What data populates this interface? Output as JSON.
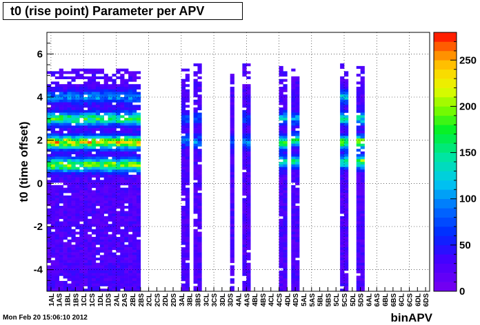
{
  "chart_data": {
    "type": "heatmap",
    "title": "t0 (rise point) Parameter per APV",
    "xlabel": "binAPV",
    "ylabel": "t0 (time offset)",
    "ylim": [
      -5,
      7
    ],
    "yticks": [
      -4,
      -2,
      0,
      2,
      4,
      6
    ],
    "categories": [
      "1AL",
      "1AS",
      "1BL",
      "1BS",
      "1CL",
      "1CS",
      "1DL",
      "1DS",
      "2AL",
      "2AS",
      "2BL",
      "2BS",
      "2CL",
      "2CS",
      "2DL",
      "2DS",
      "3AL",
      "3BL",
      "3BS",
      "3CL",
      "3CS",
      "3DL",
      "3DS",
      "4AL",
      "4AS",
      "4BL",
      "4BS",
      "4CL",
      "4CS",
      "4DL",
      "4DS",
      "5AL",
      "5AS",
      "5BL",
      "5BS",
      "5CL",
      "5CS",
      "5DL",
      "5DS",
      "6AL",
      "6AS",
      "6BL",
      "6BS",
      "6CL",
      "6CS",
      "6DL",
      "6DS"
    ],
    "zlim": [
      0,
      280
    ],
    "zticks": [
      0,
      50,
      100,
      150,
      200,
      250
    ],
    "occupied_columns": [
      {
        "from": 0,
        "to": 22,
        "top": 5.3,
        "dense_top": 4.6,
        "hot": [
          [
            0.85,
            0.7
          ],
          [
            1.9,
            0.85
          ],
          [
            3.0,
            0.6
          ],
          [
            4.0,
            0.3
          ]
        ]
      },
      {
        "from": 33,
        "to": 34,
        "top": 5.3,
        "dense_top": 4.4,
        "hot": [
          [
            2.0,
            0.3
          ],
          [
            3.0,
            0.2
          ]
        ]
      },
      {
        "from": 36,
        "to": 37,
        "top": 5.5,
        "dense_top": 4.6,
        "hot": [
          [
            1.9,
            0.3
          ],
          [
            3.0,
            0.2
          ]
        ]
      },
      {
        "from": 45,
        "to": 45,
        "top": 5.3,
        "dense_top": 4.6,
        "hot": [
          [
            1.9,
            0.25
          ]
        ]
      },
      {
        "from": 48,
        "to": 49,
        "top": 5.5,
        "dense_top": 4.6,
        "hot": [
          [
            1.9,
            0.3
          ],
          [
            3.0,
            0.2
          ]
        ]
      },
      {
        "from": 57,
        "to": 58,
        "top": 5.4,
        "dense_top": 4.7,
        "hot": [
          [
            1.0,
            0.5
          ],
          [
            1.9,
            0.6
          ],
          [
            3.0,
            0.4
          ]
        ]
      },
      {
        "from": 60,
        "to": 61,
        "top": 5.4,
        "dense_top": 4.6,
        "hot": [
          [
            1.0,
            0.5
          ],
          [
            2.0,
            0.6
          ],
          [
            3.0,
            0.3
          ]
        ]
      },
      {
        "from": 72,
        "to": 73,
        "top": 5.5,
        "dense_top": 4.8,
        "hot": [
          [
            1.0,
            0.6
          ],
          [
            1.9,
            0.7
          ],
          [
            3.0,
            0.5
          ],
          [
            4.0,
            0.4
          ]
        ]
      },
      {
        "from": 76,
        "to": 77,
        "top": 5.5,
        "dense_top": 4.8,
        "hot": [
          [
            1.0,
            0.7
          ],
          [
            1.9,
            0.8
          ],
          [
            3.0,
            0.5
          ]
        ]
      }
    ]
  },
  "footer": {
    "timestamp": "Mon Feb 20 15:06:10 2012"
  }
}
